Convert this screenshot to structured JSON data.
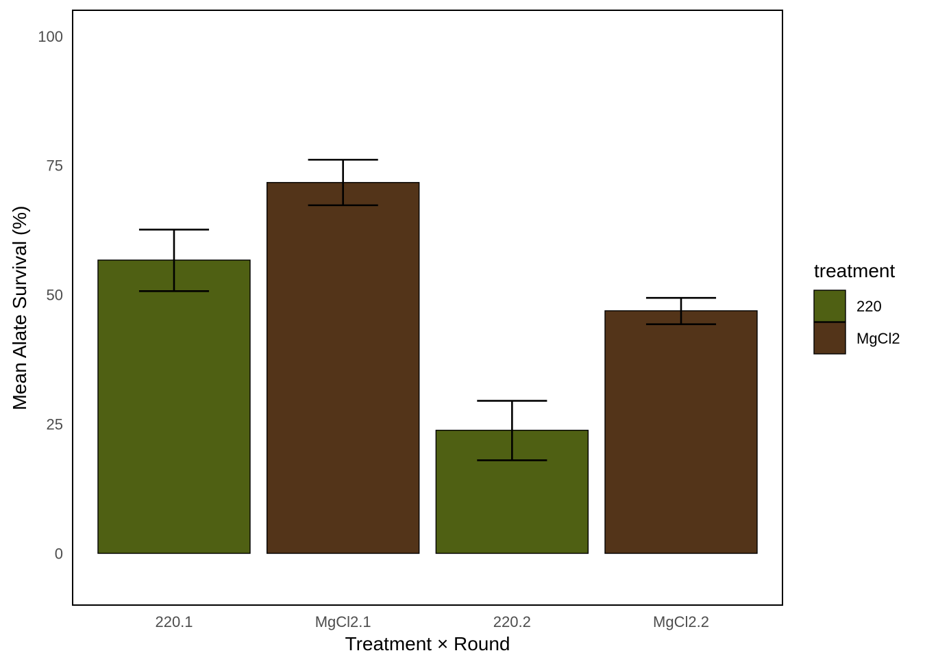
{
  "chart_data": {
    "type": "bar",
    "title": "",
    "xlabel": "Treatment × Round",
    "ylabel": "Mean Alate Survival (%)",
    "ylim": [
      -10,
      105
    ],
    "yticks": [
      0,
      25,
      50,
      75,
      100
    ],
    "categories": [
      "220.1",
      "MgCl2.1",
      "220.2",
      "MgCl2.2"
    ],
    "values": [
      56.7,
      71.7,
      23.8,
      46.9
    ],
    "error_low": [
      50.7,
      67.3,
      18.0,
      44.3
    ],
    "error_high": [
      62.6,
      76.1,
      29.5,
      49.4
    ],
    "bar_treatment": [
      "220",
      "MgCl2",
      "220",
      "MgCl2"
    ],
    "grid": false,
    "legend": {
      "title": "treatment",
      "placement": "right",
      "entries": [
        {
          "label": "220",
          "color": "#4f6013"
        },
        {
          "label": "MgCl2",
          "color": "#533419"
        }
      ]
    }
  }
}
